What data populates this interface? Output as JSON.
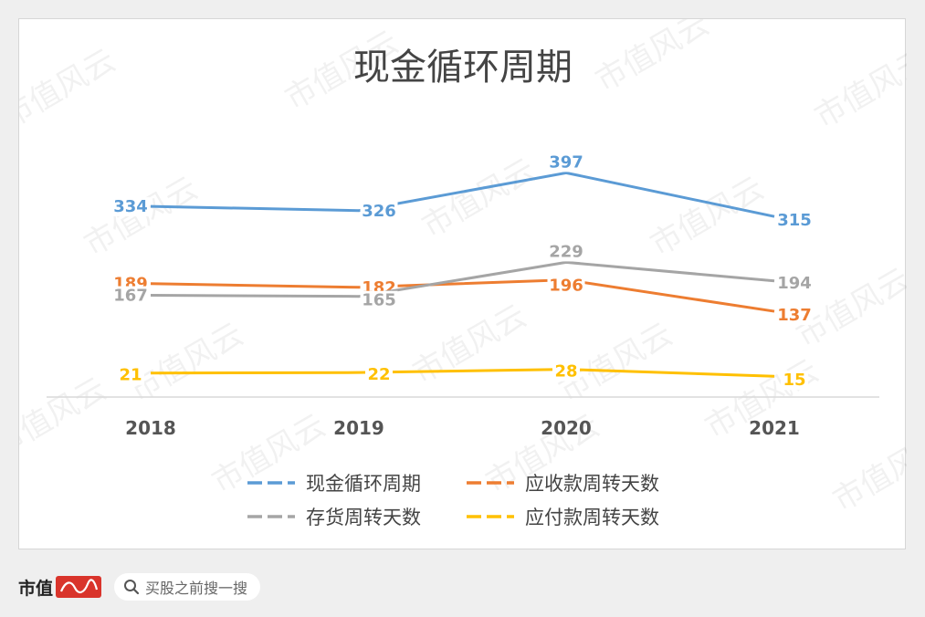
{
  "chart_data": {
    "type": "line",
    "title": "现金循环周期",
    "categories": [
      "2018",
      "2019",
      "2020",
      "2021"
    ],
    "series": [
      {
        "name": "现金循环周期",
        "values": [
          334,
          326,
          397,
          315
        ],
        "color": "#5b9bd5"
      },
      {
        "name": "应收款周转天数",
        "values": [
          189,
          182,
          196,
          137
        ],
        "color": "#ed7d31"
      },
      {
        "name": "存货周转天数",
        "values": [
          167,
          165,
          229,
          194
        ],
        "color": "#a5a5a5"
      },
      {
        "name": "应付款周转天数",
        "values": [
          21,
          22,
          28,
          15
        ],
        "color": "#ffc000"
      }
    ],
    "xlabel": "",
    "ylabel": "",
    "grid": false,
    "legend_position": "bottom"
  },
  "watermark": {
    "text": "市值风云"
  },
  "footer": {
    "brand": "市值",
    "brand_logo_text": "风云",
    "search_placeholder": "买股之前搜一搜",
    "search_icon": "search-icon"
  }
}
